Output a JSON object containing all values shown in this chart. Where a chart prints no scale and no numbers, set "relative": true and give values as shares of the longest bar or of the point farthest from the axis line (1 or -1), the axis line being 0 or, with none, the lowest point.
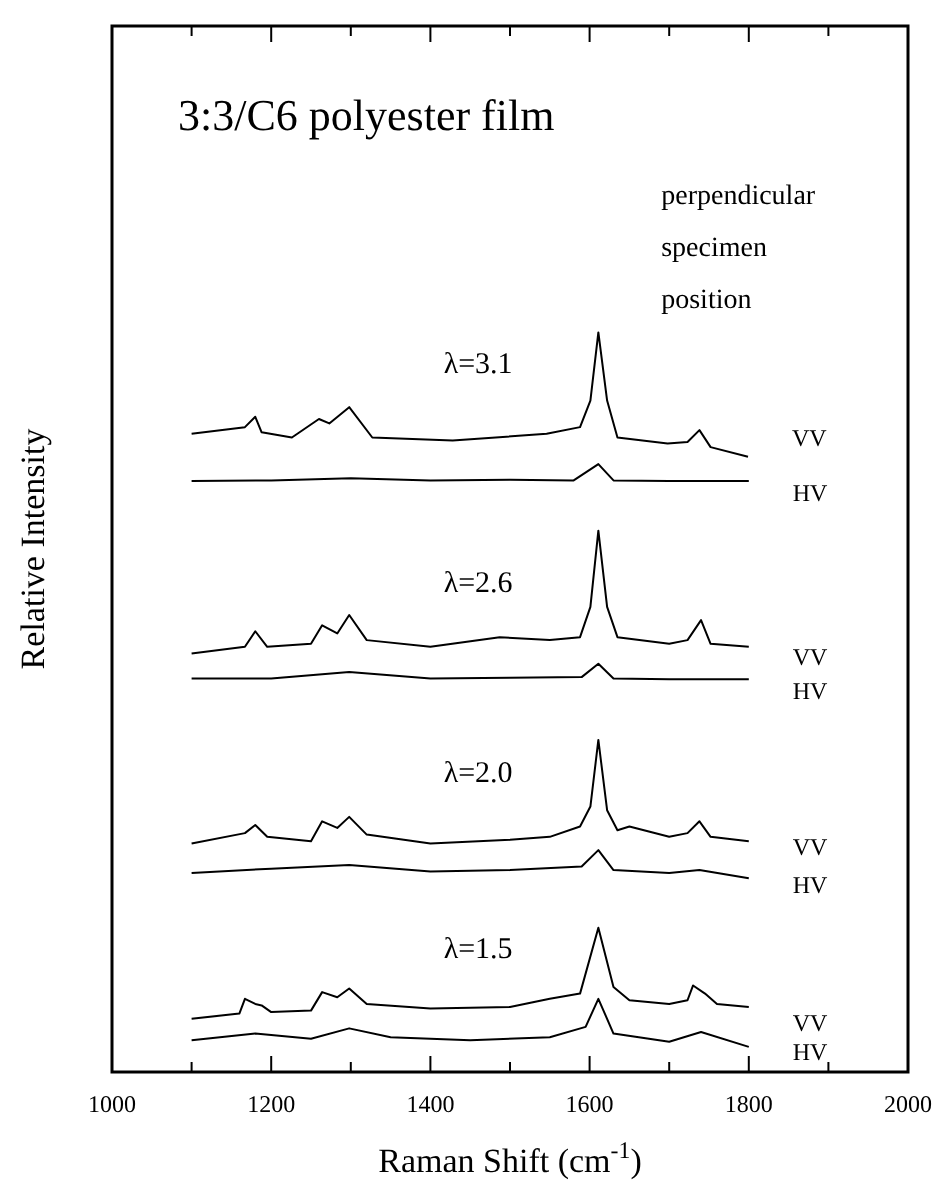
{
  "chart_data": {
    "type": "line",
    "title": "3:3/C6 polyester film",
    "xlabel": "Raman Shift (cm$^{-1}$)",
    "ylabel": "Relative Intensity",
    "relative": true,
    "legend": false,
    "grid": false,
    "xlim": [
      1000,
      2000
    ],
    "xticks": [
      1000,
      {
        "value": 1100,
        "label": null
      },
      1200,
      {
        "value": 1300,
        "label": null
      },
      1400,
      {
        "value": 1500,
        "label": null
      },
      1600,
      {
        "value": 1700,
        "label": null
      },
      1800,
      {
        "value": 1900,
        "label": null
      },
      2000
    ],
    "annotations": [
      "perpendicular specimen position",
      "λ=3.1",
      "λ=2.6",
      "λ=2.0",
      "λ=1.5"
    ],
    "series": [
      {
        "name": "VV",
        "color": "#000000",
        "x": [
          1100,
          1167,
          1180,
          1188,
          1226,
          1260,
          1273,
          1298,
          1327,
          1428,
          1546,
          1588,
          1601,
          1611,
          1622,
          1635,
          1698,
          1723,
          1738,
          1752,
          1799
        ],
        "values": [
          0.863,
          0.872,
          0.886,
          0.865,
          0.858,
          0.883,
          0.877,
          0.899,
          0.858,
          0.854,
          0.863,
          0.872,
          0.908,
          1.0,
          0.908,
          0.858,
          0.85,
          0.852,
          0.868,
          0.845,
          0.832
        ]
      },
      {
        "name": "HV",
        "color": "#000000",
        "x": [
          1100,
          1200,
          1300,
          1400,
          1500,
          1580,
          1611,
          1630,
          1700,
          1800
        ],
        "values": [
          0.799,
          0.8,
          0.803,
          0.8,
          0.801,
          0.8,
          0.822,
          0.8,
          0.799,
          0.799
        ]
      },
      {
        "name": "VV",
        "color": "#000000",
        "x": [
          1100,
          1167,
          1180,
          1195,
          1250,
          1264,
          1283,
          1298,
          1320,
          1400,
          1487,
          1550,
          1588,
          1601,
          1611,
          1622,
          1635,
          1700,
          1723,
          1740,
          1752,
          1800
        ],
        "values": [
          0.566,
          0.575,
          0.596,
          0.575,
          0.579,
          0.604,
          0.593,
          0.618,
          0.584,
          0.575,
          0.588,
          0.584,
          0.588,
          0.629,
          0.732,
          0.629,
          0.588,
          0.579,
          0.584,
          0.611,
          0.579,
          0.575
        ]
      },
      {
        "name": "HV",
        "color": "#000000",
        "x": [
          1100,
          1200,
          1298,
          1400,
          1500,
          1590,
          1611,
          1630,
          1700,
          1800
        ],
        "values": [
          0.532,
          0.532,
          0.541,
          0.532,
          0.533,
          0.534,
          0.552,
          0.532,
          0.531,
          0.531
        ]
      },
      {
        "name": "VV",
        "color": "#000000",
        "x": [
          1100,
          1167,
          1180,
          1195,
          1250,
          1264,
          1283,
          1298,
          1320,
          1400,
          1500,
          1550,
          1588,
          1601,
          1611,
          1622,
          1635,
          1650,
          1700,
          1723,
          1738,
          1752,
          1800
        ],
        "values": [
          0.309,
          0.323,
          0.334,
          0.318,
          0.312,
          0.339,
          0.33,
          0.345,
          0.321,
          0.309,
          0.314,
          0.318,
          0.332,
          0.359,
          0.449,
          0.354,
          0.327,
          0.332,
          0.318,
          0.323,
          0.339,
          0.318,
          0.312
        ]
      },
      {
        "name": "HV",
        "color": "#000000",
        "x": [
          1100,
          1200,
          1298,
          1400,
          1500,
          1590,
          1611,
          1630,
          1700,
          1738,
          1800
        ],
        "values": [
          0.269,
          0.275,
          0.28,
          0.271,
          0.273,
          0.278,
          0.3,
          0.273,
          0.269,
          0.273,
          0.262
        ]
      },
      {
        "name": "VV",
        "color": "#000000",
        "x": [
          1100,
          1160,
          1167,
          1180,
          1188,
          1200,
          1250,
          1264,
          1283,
          1298,
          1320,
          1400,
          1500,
          1550,
          1588,
          1611,
          1630,
          1650,
          1700,
          1723,
          1730,
          1745,
          1760,
          1800
        ],
        "values": [
          0.072,
          0.079,
          0.099,
          0.092,
          0.09,
          0.081,
          0.083,
          0.108,
          0.101,
          0.113,
          0.092,
          0.086,
          0.088,
          0.099,
          0.106,
          0.195,
          0.115,
          0.097,
          0.092,
          0.097,
          0.117,
          0.106,
          0.092,
          0.088
        ]
      },
      {
        "name": "HV",
        "color": "#000000",
        "x": [
          1100,
          1180,
          1250,
          1298,
          1350,
          1450,
          1550,
          1595,
          1611,
          1630,
          1700,
          1740,
          1800
        ],
        "values": [
          0.043,
          0.052,
          0.045,
          0.059,
          0.047,
          0.043,
          0.047,
          0.061,
          0.099,
          0.052,
          0.041,
          0.054,
          0.034
        ]
      }
    ]
  }
}
